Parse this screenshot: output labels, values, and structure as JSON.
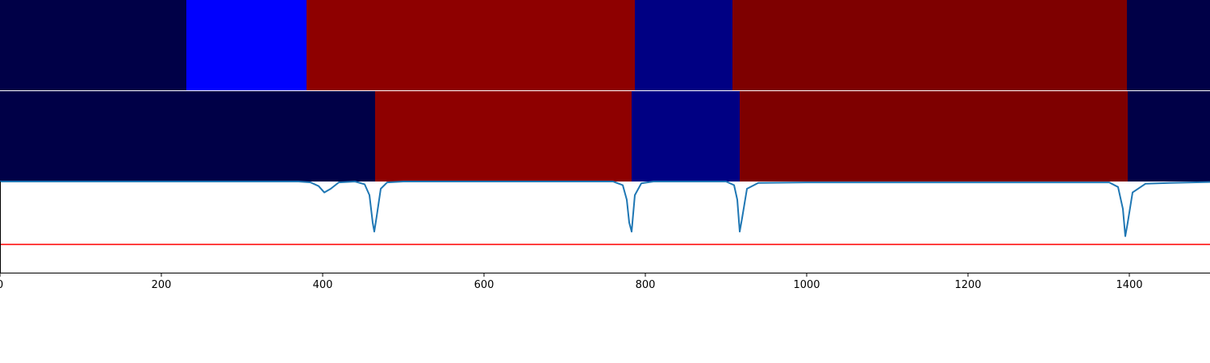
{
  "chart_data": [
    {
      "type": "heatmap",
      "name": "segment-track-1",
      "segments": [
        {
          "x0": 0,
          "x1": 231,
          "color": "#000047"
        },
        {
          "x0": 231,
          "x1": 380,
          "color": "#0000fe"
        },
        {
          "x0": 380,
          "x1": 787,
          "color": "#8e0000"
        },
        {
          "x0": 787,
          "x1": 908,
          "color": "#000083"
        },
        {
          "x0": 908,
          "x1": 1397,
          "color": "#7e0000"
        },
        {
          "x0": 1397,
          "x1": 1500,
          "color": "#000047"
        }
      ]
    },
    {
      "type": "heatmap",
      "name": "segment-track-2",
      "segments": [
        {
          "x0": 0,
          "x1": 465,
          "color": "#000047"
        },
        {
          "x0": 465,
          "x1": 783,
          "color": "#8e0000"
        },
        {
          "x0": 783,
          "x1": 917,
          "color": "#000083"
        },
        {
          "x0": 917,
          "x1": 1398,
          "color": "#7e0000"
        },
        {
          "x0": 1398,
          "x1": 1500,
          "color": "#000047"
        }
      ]
    },
    {
      "type": "line",
      "xlim": [
        0,
        1500
      ],
      "ylim": [
        0,
        1
      ],
      "x_ticks": [
        0,
        200,
        400,
        600,
        800,
        1000,
        1200,
        1400
      ],
      "tick_labels": [
        "0",
        "200",
        "400",
        "600",
        "800",
        "1000",
        "1200",
        "1400"
      ],
      "series": [
        {
          "color": "#1f77b4",
          "x": [
            0,
            370,
            385,
            395,
            402,
            410,
            420,
            440,
            452,
            458,
            462,
            464,
            467,
            472,
            480,
            500,
            760,
            772,
            777,
            780,
            783,
            787,
            795,
            810,
            900,
            910,
            914,
            917,
            920,
            926,
            940,
            1000,
            1375,
            1386,
            1392,
            1395,
            1398,
            1404,
            1420,
            1450,
            1500
          ],
          "y": [
            1.0,
            1.0,
            0.99,
            0.95,
            0.88,
            0.92,
            0.99,
            1.0,
            0.97,
            0.85,
            0.55,
            0.45,
            0.62,
            0.92,
            0.99,
            1.0,
            1.0,
            0.96,
            0.8,
            0.55,
            0.45,
            0.85,
            0.98,
            1.0,
            1.0,
            0.96,
            0.8,
            0.45,
            0.6,
            0.92,
            0.985,
            0.99,
            0.99,
            0.94,
            0.7,
            0.4,
            0.55,
            0.88,
            0.975,
            0.985,
            0.995
          ]
        },
        {
          "color": "#ff0000",
          "x": [
            0,
            1500
          ],
          "y": [
            0.31,
            0.31
          ]
        }
      ]
    }
  ]
}
